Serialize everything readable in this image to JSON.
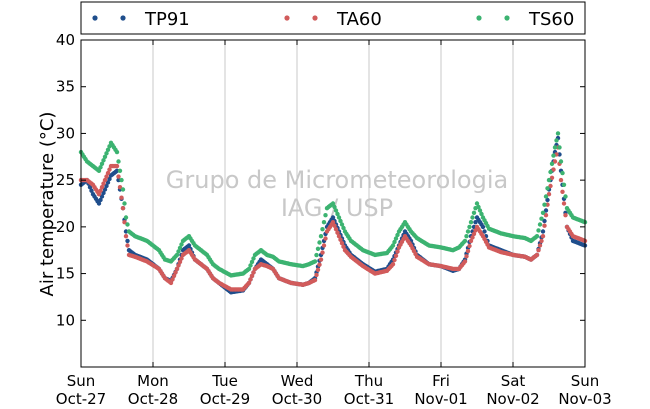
{
  "chart_data": {
    "type": "scatter",
    "ylabel": "Air temperature (°C)",
    "ylim": [
      5,
      40
    ],
    "yticks": [
      10,
      15,
      20,
      25,
      30,
      35,
      40
    ],
    "xlim": [
      "2013-10-27 00:00",
      "2013-11-03 00:00"
    ],
    "xticks": [
      {
        "day": "Sun",
        "date": "Oct-27"
      },
      {
        "day": "Mon",
        "date": "Oct-28"
      },
      {
        "day": "Tue",
        "date": "Oct-29"
      },
      {
        "day": "Wed",
        "date": "Oct-30"
      },
      {
        "day": "Thu",
        "date": "Oct-31"
      },
      {
        "day": "Fri",
        "date": "Nov-01"
      },
      {
        "day": "Sat",
        "date": "Nov-02"
      },
      {
        "day": "Sun",
        "date": "Nov-03"
      }
    ],
    "grid": "vertical",
    "legend_position": "top",
    "watermark": [
      "Grupo de Micrometeorologia",
      "IAG / USP"
    ],
    "series": [
      {
        "name": "TP91",
        "color": "#1f4e8c",
        "points": [
          [
            "Oct-27 00:00",
            24.5
          ],
          [
            "Oct-27 02:00",
            25.0
          ],
          [
            "Oct-27 04:00",
            23.5
          ],
          [
            "Oct-27 06:00",
            22.5
          ],
          [
            "Oct-27 08:00",
            24.0
          ],
          [
            "Oct-27 10:00",
            25.5
          ],
          [
            "Oct-27 12:00",
            26.0
          ],
          [
            "Oct-27 14:00",
            22.0
          ],
          [
            "Oct-27 15:00",
            19.5
          ],
          [
            "Oct-27 16:00",
            17.5
          ],
          [
            "Oct-27 18:00",
            17.0
          ],
          [
            "Oct-27 22:00",
            16.5
          ],
          [
            "Oct-28 02:00",
            15.5
          ],
          [
            "Oct-28 04:00",
            14.5
          ],
          [
            "Oct-28 06:00",
            14.2
          ],
          [
            "Oct-28 08:00",
            15.5
          ],
          [
            "Oct-28 10:00",
            17.5
          ],
          [
            "Oct-28 12:00",
            18.0
          ],
          [
            "Oct-28 14:00",
            16.5
          ],
          [
            "Oct-28 16:00",
            16.0
          ],
          [
            "Oct-28 18:00",
            15.5
          ],
          [
            "Oct-28 20:00",
            14.5
          ],
          [
            "Oct-28 22:00",
            14.0
          ],
          [
            "Oct-29 02:00",
            13.0
          ],
          [
            "Oct-29 06:00",
            13.2
          ],
          [
            "Oct-29 08:00",
            14.0
          ],
          [
            "Oct-29 10:00",
            15.5
          ],
          [
            "Oct-29 12:00",
            16.5
          ],
          [
            "Oct-29 14:00",
            16.0
          ],
          [
            "Oct-29 16:00",
            15.5
          ],
          [
            "Oct-29 18:00",
            14.5
          ],
          [
            "Oct-29 22:00",
            14.0
          ],
          [
            "Oct-30 02:00",
            13.8
          ],
          [
            "Oct-30 04:00",
            14.0
          ],
          [
            "Oct-30 06:00",
            14.5
          ],
          [
            "Oct-30 08:00",
            17.0
          ],
          [
            "Oct-30 10:00",
            20.0
          ],
          [
            "Oct-30 12:00",
            21.0
          ],
          [
            "Oct-30 14:00",
            19.5
          ],
          [
            "Oct-30 16:00",
            18.0
          ],
          [
            "Oct-30 18:00",
            17.0
          ],
          [
            "Oct-30 22:00",
            16.0
          ],
          [
            "Oct-31 02:00",
            15.2
          ],
          [
            "Oct-31 06:00",
            15.5
          ],
          [
            "Oct-31 08:00",
            16.5
          ],
          [
            "Oct-31 10:00",
            18.0
          ],
          [
            "Oct-31 12:00",
            19.5
          ],
          [
            "Oct-31 14:00",
            18.5
          ],
          [
            "Oct-31 16:00",
            17.0
          ],
          [
            "Oct-31 20:00",
            16.0
          ],
          [
            "Nov-01 00:00",
            15.8
          ],
          [
            "Nov-01 04:00",
            15.3
          ],
          [
            "Nov-01 06:00",
            15.5
          ],
          [
            "Nov-01 08:00",
            16.5
          ],
          [
            "Nov-01 10:00",
            19.0
          ],
          [
            "Nov-01 12:00",
            21.0
          ],
          [
            "Nov-01 14:00",
            20.0
          ],
          [
            "Nov-01 16:00",
            18.0
          ],
          [
            "Nov-01 20:00",
            17.5
          ],
          [
            "Nov-02 00:00",
            17.0
          ],
          [
            "Nov-02 04:00",
            16.8
          ],
          [
            "Nov-02 06:00",
            16.5
          ],
          [
            "Nov-02 08:00",
            17.0
          ],
          [
            "Nov-02 10:00",
            19.5
          ],
          [
            "Nov-02 12:00",
            24.0
          ],
          [
            "Nov-02 14:00",
            28.0
          ],
          [
            "Nov-02 15:00",
            29.5
          ],
          [
            "Nov-02 16:00",
            26.0
          ],
          [
            "Nov-02 18:00",
            20.0
          ],
          [
            "Nov-02 20:00",
            18.5
          ],
          [
            "Nov-03 00:00",
            18.0
          ]
        ]
      },
      {
        "name": "TA60",
        "color": "#d15b5b",
        "points": [
          [
            "Oct-27 00:00",
            25.0
          ],
          [
            "Oct-27 02:00",
            25.0
          ],
          [
            "Oct-27 04:00",
            24.5
          ],
          [
            "Oct-27 06:00",
            23.5
          ],
          [
            "Oct-27 08:00",
            25.0
          ],
          [
            "Oct-27 10:00",
            26.5
          ],
          [
            "Oct-27 12:00",
            26.5
          ],
          [
            "Oct-27 14:00",
            22.0
          ],
          [
            "Oct-27 15:00",
            19.0
          ],
          [
            "Oct-27 16:00",
            17.0
          ],
          [
            "Oct-27 18:00",
            16.8
          ],
          [
            "Oct-27 22:00",
            16.3
          ],
          [
            "Oct-28 02:00",
            15.5
          ],
          [
            "Oct-28 04:00",
            14.5
          ],
          [
            "Oct-28 06:00",
            14.0
          ],
          [
            "Oct-28 08:00",
            15.5
          ],
          [
            "Oct-28 10:00",
            17.0
          ],
          [
            "Oct-28 12:00",
            17.5
          ],
          [
            "Oct-28 14:00",
            16.5
          ],
          [
            "Oct-28 16:00",
            16.0
          ],
          [
            "Oct-28 18:00",
            15.5
          ],
          [
            "Oct-28 20:00",
            14.5
          ],
          [
            "Oct-28 22:00",
            14.0
          ],
          [
            "Oct-29 02:00",
            13.3
          ],
          [
            "Oct-29 06:00",
            13.3
          ],
          [
            "Oct-29 08:00",
            14.0
          ],
          [
            "Oct-29 10:00",
            15.5
          ],
          [
            "Oct-29 12:00",
            16.0
          ],
          [
            "Oct-29 14:00",
            15.8
          ],
          [
            "Oct-29 16:00",
            15.5
          ],
          [
            "Oct-29 18:00",
            14.5
          ],
          [
            "Oct-29 22:00",
            14.0
          ],
          [
            "Oct-30 02:00",
            13.8
          ],
          [
            "Oct-30 04:00",
            14.0
          ],
          [
            "Oct-30 06:00",
            14.3
          ],
          [
            "Oct-30 08:00",
            16.5
          ],
          [
            "Oct-30 10:00",
            19.5
          ],
          [
            "Oct-30 12:00",
            20.5
          ],
          [
            "Oct-30 14:00",
            19.0
          ],
          [
            "Oct-30 16:00",
            17.5
          ],
          [
            "Oct-30 18:00",
            16.8
          ],
          [
            "Oct-30 22:00",
            15.8
          ],
          [
            "Oct-31 02:00",
            15.0
          ],
          [
            "Oct-31 06:00",
            15.3
          ],
          [
            "Oct-31 08:00",
            16.0
          ],
          [
            "Oct-31 10:00",
            17.8
          ],
          [
            "Oct-31 12:00",
            19.0
          ],
          [
            "Oct-31 14:00",
            18.0
          ],
          [
            "Oct-31 16:00",
            16.8
          ],
          [
            "Oct-31 20:00",
            16.0
          ],
          [
            "Nov-01 00:00",
            15.8
          ],
          [
            "Nov-01 04:00",
            15.5
          ],
          [
            "Nov-01 06:00",
            15.5
          ],
          [
            "Nov-01 08:00",
            16.3
          ],
          [
            "Nov-01 10:00",
            18.5
          ],
          [
            "Nov-01 12:00",
            20.0
          ],
          [
            "Nov-01 14:00",
            19.0
          ],
          [
            "Nov-01 16:00",
            17.8
          ],
          [
            "Nov-01 20:00",
            17.3
          ],
          [
            "Nov-02 00:00",
            17.0
          ],
          [
            "Nov-02 04:00",
            16.8
          ],
          [
            "Nov-02 06:00",
            16.5
          ],
          [
            "Nov-02 08:00",
            17.0
          ],
          [
            "Nov-02 10:00",
            19.0
          ],
          [
            "Nov-02 12:00",
            23.5
          ],
          [
            "Nov-02 14:00",
            27.0
          ],
          [
            "Nov-02 15:00",
            28.5
          ],
          [
            "Nov-02 16:00",
            25.0
          ],
          [
            "Nov-02 18:00",
            20.0
          ],
          [
            "Nov-02 20:00",
            19.0
          ],
          [
            "Nov-03 00:00",
            18.5
          ]
        ]
      },
      {
        "name": "TS60",
        "color": "#3cb371",
        "points": [
          [
            "Oct-27 00:00",
            28.0
          ],
          [
            "Oct-27 02:00",
            27.0
          ],
          [
            "Oct-27 04:00",
            26.5
          ],
          [
            "Oct-27 06:00",
            26.0
          ],
          [
            "Oct-27 08:00",
            27.5
          ],
          [
            "Oct-27 10:00",
            29.0
          ],
          [
            "Oct-27 12:00",
            28.0
          ],
          [
            "Oct-27 14:00",
            24.0
          ],
          [
            "Oct-27 15:00",
            21.0
          ],
          [
            "Oct-27 16:00",
            19.5
          ],
          [
            "Oct-27 18:00",
            19.0
          ],
          [
            "Oct-27 22:00",
            18.5
          ],
          [
            "Oct-28 02:00",
            17.5
          ],
          [
            "Oct-28 04:00",
            16.5
          ],
          [
            "Oct-28 06:00",
            16.3
          ],
          [
            "Oct-28 08:00",
            17.0
          ],
          [
            "Oct-28 10:00",
            18.5
          ],
          [
            "Oct-28 12:00",
            19.0
          ],
          [
            "Oct-28 14:00",
            18.0
          ],
          [
            "Oct-28 16:00",
            17.5
          ],
          [
            "Oct-28 18:00",
            17.0
          ],
          [
            "Oct-28 20:00",
            16.0
          ],
          [
            "Oct-28 22:00",
            15.5
          ],
          [
            "Oct-29 02:00",
            14.8
          ],
          [
            "Oct-29 06:00",
            15.0
          ],
          [
            "Oct-29 08:00",
            15.5
          ],
          [
            "Oct-29 10:00",
            17.0
          ],
          [
            "Oct-29 12:00",
            17.5
          ],
          [
            "Oct-29 14:00",
            17.0
          ],
          [
            "Oct-29 16:00",
            16.8
          ],
          [
            "Oct-29 18:00",
            16.3
          ],
          [
            "Oct-29 22:00",
            16.0
          ],
          [
            "Oct-30 02:00",
            15.8
          ],
          [
            "Oct-30 04:00",
            16.0
          ],
          [
            "Oct-30 06:00",
            16.3
          ],
          [
            "Oct-30 08:00",
            19.0
          ],
          [
            "Oct-30 10:00",
            22.0
          ],
          [
            "Oct-30 12:00",
            22.5
          ],
          [
            "Oct-30 14:00",
            21.0
          ],
          [
            "Oct-30 16:00",
            19.5
          ],
          [
            "Oct-30 18:00",
            18.5
          ],
          [
            "Oct-30 22:00",
            17.5
          ],
          [
            "Oct-31 02:00",
            17.0
          ],
          [
            "Oct-31 06:00",
            17.2
          ],
          [
            "Oct-31 08:00",
            18.0
          ],
          [
            "Oct-31 10:00",
            19.5
          ],
          [
            "Oct-31 12:00",
            20.5
          ],
          [
            "Oct-31 14:00",
            19.5
          ],
          [
            "Oct-31 16:00",
            18.8
          ],
          [
            "Oct-31 20:00",
            18.0
          ],
          [
            "Nov-01 00:00",
            17.8
          ],
          [
            "Nov-01 04:00",
            17.5
          ],
          [
            "Nov-01 06:00",
            17.8
          ],
          [
            "Nov-01 08:00",
            18.5
          ],
          [
            "Nov-01 10:00",
            20.5
          ],
          [
            "Nov-01 12:00",
            22.5
          ],
          [
            "Nov-01 14:00",
            21.0
          ],
          [
            "Nov-01 16:00",
            19.8
          ],
          [
            "Nov-01 20:00",
            19.3
          ],
          [
            "Nov-02 00:00",
            19.0
          ],
          [
            "Nov-02 04:00",
            18.8
          ],
          [
            "Nov-02 06:00",
            18.5
          ],
          [
            "Nov-02 08:00",
            19.0
          ],
          [
            "Nov-02 10:00",
            21.5
          ],
          [
            "Nov-02 12:00",
            25.0
          ],
          [
            "Nov-02 14:00",
            28.5
          ],
          [
            "Nov-02 15:00",
            30.0
          ],
          [
            "Nov-02 16:00",
            27.0
          ],
          [
            "Nov-02 18:00",
            22.0
          ],
          [
            "Nov-02 20:00",
            21.0
          ],
          [
            "Nov-03 00:00",
            20.5
          ]
        ]
      }
    ]
  }
}
